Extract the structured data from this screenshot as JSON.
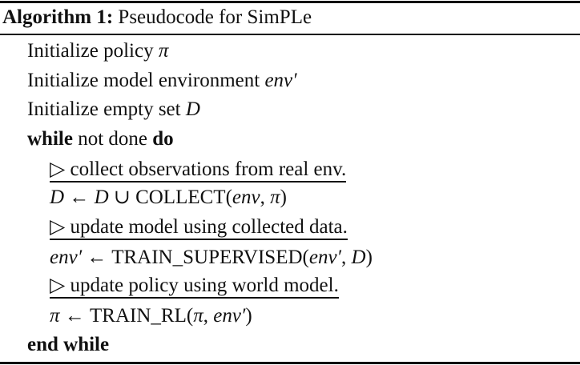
{
  "caption": {
    "label": "Algorithm 1:",
    "title": "Pseudocode for SimPLe"
  },
  "lines": [
    {
      "text": "Initialize policy ",
      "math": "π"
    },
    {
      "text": "Initialize model environment ",
      "math": "env′"
    },
    {
      "text": "Initialize empty set ",
      "math": "D"
    },
    {
      "kw1": "while",
      "text": " not done ",
      "kw2": "do"
    },
    {
      "comment": "▷ collect observations from real env."
    },
    {
      "m1": "D",
      "op1": " ← ",
      "m2": "D",
      "op2": " ∪ ",
      "fn": "COLLECT",
      "args": "(",
      "a1": "env",
      "sep": ", ",
      "a2": "π",
      "close": ")"
    },
    {
      "comment": "▷ update model using collected data."
    },
    {
      "m1": "env′",
      "op1": " ← ",
      "fn": "TRAIN_SUPERVISED",
      "args": "(",
      "a1": "env′",
      "sep": ", ",
      "a2": "D",
      "close": ")"
    },
    {
      "comment": "▷ update policy using world model."
    },
    {
      "m1": "π",
      "op1": " ← ",
      "fn": "TRAIN_RL",
      "args": "(",
      "a1": "π",
      "sep": ", ",
      "a2": "env′",
      "close": ")"
    },
    {
      "kw1": "end while"
    }
  ]
}
